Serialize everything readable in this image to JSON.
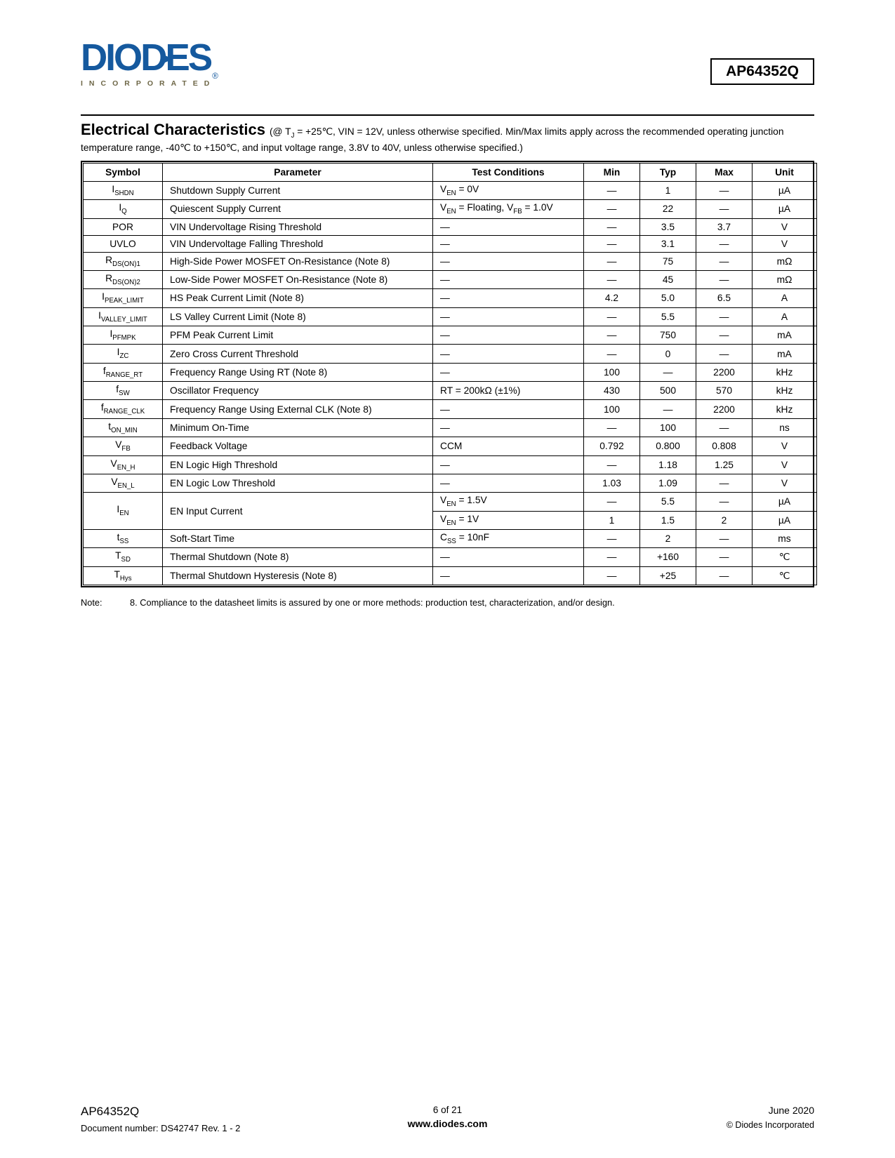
{
  "header": {
    "logo_word": "DIODES",
    "logo_reg": "®",
    "logo_sub": "INCORPORATED",
    "part_number": "AP64352Q"
  },
  "section": {
    "title": "Electrical Characteristics",
    "intro": "(@ T~J~ = +25℃, VIN = 12V, unless otherwise specified. Min/Max limits apply across the recommended operating junction temperature range, -40℃ to +150℃, and input voltage range, 3.8V to 40V, unless otherwise specified.)"
  },
  "table": {
    "columns": [
      "Symbol",
      "Parameter",
      "Test Conditions",
      "Min",
      "Typ",
      "Max",
      "Unit"
    ],
    "rows": [
      {
        "sym": "I~SHDN~",
        "param": "Shutdown Supply Current",
        "cond": "V~EN~ = 0V",
        "min": "—",
        "typ": "1",
        "max": "—",
        "unit": "µA"
      },
      {
        "sym": "I~Q~",
        "param": "Quiescent Supply Current",
        "cond": "V~EN~ = Floating, V~FB~ = 1.0V",
        "min": "—",
        "typ": "22",
        "max": "—",
        "unit": "µA"
      },
      {
        "sym": "POR",
        "param": "VIN Undervoltage Rising Threshold",
        "cond": "—",
        "min": "—",
        "typ": "3.5",
        "max": "3.7",
        "unit": "V"
      },
      {
        "sym": "UVLO",
        "param": "VIN Undervoltage Falling Threshold",
        "cond": "—",
        "min": "—",
        "typ": "3.1",
        "max": "—",
        "unit": "V"
      },
      {
        "sym": "R~DS(ON)1~",
        "param": "High-Side Power MOSFET On-Resistance (Note 8)",
        "cond": "—",
        "min": "—",
        "typ": "75",
        "max": "—",
        "unit": "mΩ"
      },
      {
        "sym": "R~DS(ON)2~",
        "param": "Low-Side Power MOSFET On-Resistance (Note 8)",
        "cond": "—",
        "min": "—",
        "typ": "45",
        "max": "—",
        "unit": "mΩ"
      },
      {
        "sym": "I~PEAK_LIMIT~",
        "param": "HS Peak Current Limit (Note 8)",
        "cond": "—",
        "min": "4.2",
        "typ": "5.0",
        "max": "6.5",
        "unit": "A"
      },
      {
        "sym": "I~VALLEY_LIMIT~",
        "param": "LS Valley Current Limit (Note 8)",
        "cond": "—",
        "min": "—",
        "typ": "5.5",
        "max": "—",
        "unit": "A"
      },
      {
        "sym": "I~PFMPK~",
        "param": "PFM Peak Current Limit",
        "cond": "—",
        "min": "—",
        "typ": "750",
        "max": "—",
        "unit": "mA"
      },
      {
        "sym": "I~ZC~",
        "param": "Zero Cross Current Threshold",
        "cond": "—",
        "min": "—",
        "typ": "0",
        "max": "—",
        "unit": "mA"
      },
      {
        "sym": "f~RANGE_RT~",
        "param": "Frequency Range Using RT (Note 8)",
        "cond": "—",
        "min": "100",
        "typ": "—",
        "max": "2200",
        "unit": "kHz"
      },
      {
        "sym": "f~SW~",
        "param": "Oscillator Frequency",
        "cond": "RT = 200kΩ (±1%)",
        "min": "430",
        "typ": "500",
        "max": "570",
        "unit": "kHz"
      },
      {
        "sym": "f~RANGE_CLK~",
        "param": "Frequency Range Using External CLK (Note 8)",
        "cond": "—",
        "min": "100",
        "typ": "—",
        "max": "2200",
        "unit": "kHz"
      },
      {
        "sym": "t~ON_MIN~",
        "param": "Minimum On-Time",
        "cond": "—",
        "min": "—",
        "typ": "100",
        "max": "—",
        "unit": "ns"
      },
      {
        "sym": "V~FB~",
        "param": "Feedback Voltage",
        "cond": "CCM",
        "min": "0.792",
        "typ": "0.800",
        "max": "0.808",
        "unit": "V"
      },
      {
        "sym": "V~EN_H~",
        "param": "EN Logic High Threshold",
        "cond": "—",
        "min": "—",
        "typ": "1.18",
        "max": "1.25",
        "unit": "V"
      },
      {
        "sym": "V~EN_L~",
        "param": "EN Logic Low Threshold",
        "cond": "—",
        "min": "1.03",
        "typ": "1.09",
        "max": "—",
        "unit": "V"
      },
      {
        "sym": "I~EN~",
        "param": "EN Input Current",
        "rowspan": 2,
        "cond": "V~EN~ = 1.5V",
        "min": "—",
        "typ": "5.5",
        "max": "—",
        "unit": "µA"
      },
      {
        "cont": true,
        "cond": "V~EN~ = 1V",
        "min": "1",
        "typ": "1.5",
        "max": "2",
        "unit": "µA"
      },
      {
        "sym": "t~SS~",
        "param": "Soft-Start Time",
        "cond": "C~SS~ = 10nF",
        "min": "—",
        "typ": "2",
        "max": "—",
        "unit": "ms"
      },
      {
        "sym": "T~SD~",
        "param": "Thermal Shutdown (Note 8)",
        "cond": "—",
        "min": "—",
        "typ": "+160",
        "max": "—",
        "unit": "℃"
      },
      {
        "sym": "T~Hys~",
        "param": "Thermal Shutdown Hysteresis (Note 8)",
        "cond": "—",
        "min": "—",
        "typ": "+25",
        "max": "—",
        "unit": "℃"
      }
    ]
  },
  "note": {
    "label": "Note:",
    "text": "8. Compliance to the datasheet limits is assured by one or more methods: production test, characterization, and/or design."
  },
  "footer": {
    "part": "AP64352Q",
    "doc": "Document number: DS42747 Rev. 1 - 2",
    "page": "6 of 21",
    "site": "www.diodes.com",
    "date": "June 2020",
    "copyright": "© Diodes Incorporated"
  },
  "colors": {
    "logo_blue": "#15599E",
    "logo_olive": "#6E6747"
  }
}
